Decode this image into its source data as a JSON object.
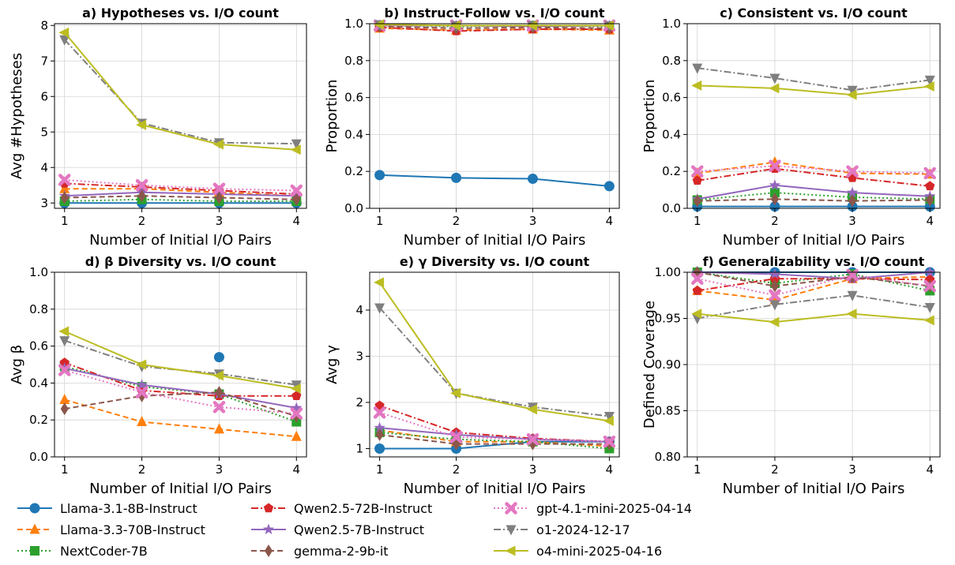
{
  "figure": {
    "legend": [
      {
        "name": "Llama-3.1-8B-Instruct",
        "color": "#1f77b4",
        "marker": "circle",
        "dash": "solid"
      },
      {
        "name": "Llama-3.3-70B-Instruct",
        "color": "#ff7f0e",
        "marker": "triangle-up",
        "dash": "dashed"
      },
      {
        "name": "NextCoder-7B",
        "color": "#2ca02c",
        "marker": "square",
        "dash": "dotted"
      },
      {
        "name": "Qwen2.5-72B-Instruct",
        "color": "#d62728",
        "marker": "pentagon",
        "dash": "dashdot"
      },
      {
        "name": "Qwen2.5-7B-Instruct",
        "color": "#9467bd",
        "marker": "star",
        "dash": "solid"
      },
      {
        "name": "gemma-2-9b-it",
        "color": "#8c564b",
        "marker": "diamond",
        "dash": "dashed"
      },
      {
        "name": "gpt-4.1-mini-2025-04-14",
        "color": "#e377c2",
        "marker": "x",
        "dash": "dotted"
      },
      {
        "name": "o1-2024-12-17",
        "color": "#7f7f7f",
        "marker": "triangle-down",
        "dash": "dashdot"
      },
      {
        "name": "o4-mini-2025-04-16",
        "color": "#bcbd22",
        "marker": "triangle-left",
        "dash": "solid"
      }
    ],
    "legend_placement": "bottom"
  },
  "chart_data": [
    {
      "type": "line",
      "title": "a) Hypotheses vs. I/O count",
      "xlabel": "Number of Initial I/O Pairs",
      "ylabel": "Avg #Hypotheses",
      "x": [
        1,
        2,
        3,
        4
      ],
      "ylim": [
        2.85,
        8.05
      ],
      "yticks": [
        3,
        4,
        5,
        6,
        7,
        8
      ],
      "ytick_labels": [
        "3",
        "4",
        "5",
        "6",
        "7",
        "8"
      ],
      "grid": true,
      "series": [
        {
          "name": "Llama-3.1-8B-Instruct",
          "values": [
            3.0,
            3.0,
            3.0,
            3.0
          ]
        },
        {
          "name": "Llama-3.3-70B-Instruct",
          "values": [
            3.4,
            3.4,
            3.3,
            3.2
          ]
        },
        {
          "name": "NextCoder-7B",
          "values": [
            3.05,
            3.1,
            3.05,
            3.05
          ]
        },
        {
          "name": "Qwen2.5-72B-Instruct",
          "values": [
            3.55,
            3.45,
            3.35,
            3.25
          ]
        },
        {
          "name": "Qwen2.5-7B-Instruct",
          "values": [
            3.2,
            3.3,
            3.25,
            3.2
          ]
        },
        {
          "name": "gemma-2-9b-it",
          "values": [
            3.15,
            3.2,
            3.15,
            3.1
          ]
        },
        {
          "name": "gpt-4.1-mini-2025-04-14",
          "values": [
            3.65,
            3.5,
            3.4,
            3.35
          ]
        },
        {
          "name": "o1-2024-12-17",
          "values": [
            7.6,
            5.25,
            4.7,
            4.67
          ]
        },
        {
          "name": "o4-mini-2025-04-16",
          "values": [
            7.8,
            5.2,
            4.65,
            4.5
          ]
        }
      ]
    },
    {
      "type": "line",
      "title": "b) Instruct-Follow vs. I/O count",
      "xlabel": "Number of Initial I/O Pairs",
      "ylabel": "Proportion",
      "x": [
        1,
        2,
        3,
        4
      ],
      "ylim": [
        0.0,
        1.0
      ],
      "yticks": [
        0.0,
        0.2,
        0.4,
        0.6,
        0.8,
        1.0
      ],
      "ytick_labels": [
        "0.0",
        "0.2",
        "0.4",
        "0.6",
        "0.8",
        "1.0"
      ],
      "grid": true,
      "series": [
        {
          "name": "Llama-3.1-8B-Instruct",
          "values": [
            0.18,
            0.165,
            0.16,
            0.12
          ]
        },
        {
          "name": "Llama-3.3-70B-Instruct",
          "values": [
            0.975,
            0.965,
            0.97,
            0.965
          ]
        },
        {
          "name": "NextCoder-7B",
          "values": [
            0.99,
            0.985,
            0.99,
            0.985
          ]
        },
        {
          "name": "Qwen2.5-72B-Instruct",
          "values": [
            0.98,
            0.96,
            0.97,
            0.97
          ]
        },
        {
          "name": "Qwen2.5-7B-Instruct",
          "values": [
            0.99,
            0.99,
            0.985,
            0.99
          ]
        },
        {
          "name": "gemma-2-9b-it",
          "values": [
            0.985,
            0.975,
            0.98,
            0.975
          ]
        },
        {
          "name": "gpt-4.1-mini-2025-04-14",
          "values": [
            0.99,
            0.99,
            0.99,
            0.99
          ]
        },
        {
          "name": "o1-2024-12-17",
          "values": [
            0.995,
            0.99,
            0.99,
            0.99
          ]
        },
        {
          "name": "o4-mini-2025-04-16",
          "values": [
            0.995,
            0.99,
            0.99,
            0.99
          ]
        }
      ]
    },
    {
      "type": "line",
      "title": "c) Consistent vs. I/O count",
      "xlabel": "Number of Initial I/O Pairs",
      "ylabel": "Proportion",
      "x": [
        1,
        2,
        3,
        4
      ],
      "ylim": [
        0.0,
        1.0
      ],
      "yticks": [
        0.0,
        0.2,
        0.4,
        0.6,
        0.8,
        1.0
      ],
      "ytick_labels": [
        "0.0",
        "0.2",
        "0.4",
        "0.6",
        "0.8",
        "1.0"
      ],
      "grid": true,
      "series": [
        {
          "name": "Llama-3.1-8B-Instruct",
          "values": [
            0.01,
            0.01,
            0.01,
            0.01
          ]
        },
        {
          "name": "Llama-3.3-70B-Instruct",
          "values": [
            0.19,
            0.25,
            0.19,
            0.185
          ]
        },
        {
          "name": "NextCoder-7B",
          "values": [
            0.045,
            0.085,
            0.06,
            0.05
          ]
        },
        {
          "name": "Qwen2.5-72B-Instruct",
          "values": [
            0.15,
            0.215,
            0.165,
            0.12
          ]
        },
        {
          "name": "Qwen2.5-7B-Instruct",
          "values": [
            0.05,
            0.125,
            0.085,
            0.065
          ]
        },
        {
          "name": "gemma-2-9b-it",
          "values": [
            0.04,
            0.05,
            0.04,
            0.045
          ]
        },
        {
          "name": "gpt-4.1-mini-2025-04-14",
          "values": [
            0.2,
            0.23,
            0.2,
            0.19
          ]
        },
        {
          "name": "o1-2024-12-17",
          "values": [
            0.76,
            0.705,
            0.64,
            0.695
          ]
        },
        {
          "name": "o4-mini-2025-04-16",
          "values": [
            0.665,
            0.65,
            0.615,
            0.66
          ]
        }
      ]
    },
    {
      "type": "line",
      "title": "d) β Diversity vs. I/O count",
      "xlabel": "Number of Initial I/O Pairs",
      "ylabel": "Avg β",
      "x": [
        1,
        2,
        3,
        4
      ],
      "ylim": [
        0.0,
        1.0
      ],
      "yticks": [
        0.0,
        0.2,
        0.4,
        0.6,
        0.8,
        1.0
      ],
      "ytick_labels": [
        "0.0",
        "0.2",
        "0.4",
        "0.6",
        "0.8",
        "1.0"
      ],
      "grid": true,
      "series": [
        {
          "name": "Llama-3.1-8B-Instruct",
          "values": [
            null,
            null,
            0.54,
            null
          ]
        },
        {
          "name": "Llama-3.3-70B-Instruct",
          "values": [
            0.31,
            0.19,
            0.15,
            0.11
          ]
        },
        {
          "name": "NextCoder-7B",
          "values": [
            0.49,
            0.38,
            0.34,
            0.19
          ]
        },
        {
          "name": "Qwen2.5-72B-Instruct",
          "values": [
            0.51,
            0.36,
            0.33,
            0.33
          ]
        },
        {
          "name": "Qwen2.5-7B-Instruct",
          "values": [
            0.48,
            0.39,
            0.34,
            0.265
          ]
        },
        {
          "name": "gemma-2-9b-it",
          "values": [
            0.26,
            0.33,
            0.35,
            0.22
          ]
        },
        {
          "name": "gpt-4.1-mini-2025-04-14",
          "values": [
            0.47,
            0.35,
            0.27,
            0.235
          ]
        },
        {
          "name": "o1-2024-12-17",
          "values": [
            0.63,
            0.49,
            0.45,
            0.39
          ]
        },
        {
          "name": "o4-mini-2025-04-16",
          "values": [
            0.68,
            0.5,
            0.44,
            0.37
          ]
        }
      ]
    },
    {
      "type": "line",
      "title": "e) γ Diversity vs. I/O count",
      "xlabel": "Number of Initial I/O Pairs",
      "ylabel": "Avg γ",
      "x": [
        1,
        2,
        3,
        4
      ],
      "ylim": [
        0.82,
        4.82
      ],
      "yticks": [
        1,
        2,
        3,
        4
      ],
      "ytick_labels": [
        "1",
        "2",
        "3",
        "4"
      ],
      "grid": true,
      "series": [
        {
          "name": "Llama-3.1-8B-Instruct",
          "values": [
            1.0,
            1.0,
            1.15,
            1.15
          ]
        },
        {
          "name": "Llama-3.3-70B-Instruct",
          "values": [
            1.4,
            1.15,
            1.15,
            1.05
          ]
        },
        {
          "name": "NextCoder-7B",
          "values": [
            1.35,
            1.2,
            1.15,
            1.0
          ]
        },
        {
          "name": "Qwen2.5-72B-Instruct",
          "values": [
            1.93,
            1.35,
            1.22,
            1.15
          ]
        },
        {
          "name": "Qwen2.5-7B-Instruct",
          "values": [
            1.45,
            1.3,
            1.2,
            1.15
          ]
        },
        {
          "name": "gemma-2-9b-it",
          "values": [
            1.3,
            1.1,
            1.1,
            1.1
          ]
        },
        {
          "name": "gpt-4.1-mini-2025-04-14",
          "values": [
            1.78,
            1.25,
            1.2,
            1.15
          ]
        },
        {
          "name": "o1-2024-12-17",
          "values": [
            4.05,
            2.2,
            1.9,
            1.7
          ]
        },
        {
          "name": "o4-mini-2025-04-16",
          "values": [
            4.6,
            2.2,
            1.85,
            1.6
          ]
        }
      ]
    },
    {
      "type": "line",
      "title": "f) Generalizability vs. I/O count",
      "xlabel": "Number of Initial I/O Pairs",
      "ylabel": "Defined Coverage",
      "x": [
        1,
        2,
        3,
        4
      ],
      "ylim": [
        0.8,
        1.0
      ],
      "yticks": [
        0.8,
        0.85,
        0.9,
        0.95,
        1.0
      ],
      "ytick_labels": [
        "0.80",
        "0.85",
        "0.90",
        "0.95",
        "1.00"
      ],
      "grid": true,
      "series": [
        {
          "name": "Llama-3.1-8B-Instruct",
          "values": [
            1.0,
            1.0,
            1.0,
            1.0
          ]
        },
        {
          "name": "Llama-3.3-70B-Instruct",
          "values": [
            0.98,
            0.97,
            0.993,
            0.995
          ]
        },
        {
          "name": "NextCoder-7B",
          "values": [
            1.0,
            0.988,
            0.998,
            0.98
          ]
        },
        {
          "name": "Qwen2.5-72B-Instruct",
          "values": [
            0.98,
            0.993,
            0.993,
            0.992
          ]
        },
        {
          "name": "Qwen2.5-7B-Instruct",
          "values": [
            1.0,
            0.998,
            0.993,
            1.0
          ]
        },
        {
          "name": "gemma-2-9b-it",
          "values": [
            1.0,
            0.985,
            0.995,
            0.985
          ]
        },
        {
          "name": "gpt-4.1-mini-2025-04-14",
          "values": [
            0.993,
            0.975,
            0.997,
            0.985
          ]
        },
        {
          "name": "o1-2024-12-17",
          "values": [
            0.95,
            0.965,
            0.975,
            0.962
          ]
        },
        {
          "name": "o4-mini-2025-04-16",
          "values": [
            0.955,
            0.946,
            0.955,
            0.948
          ]
        }
      ]
    }
  ]
}
